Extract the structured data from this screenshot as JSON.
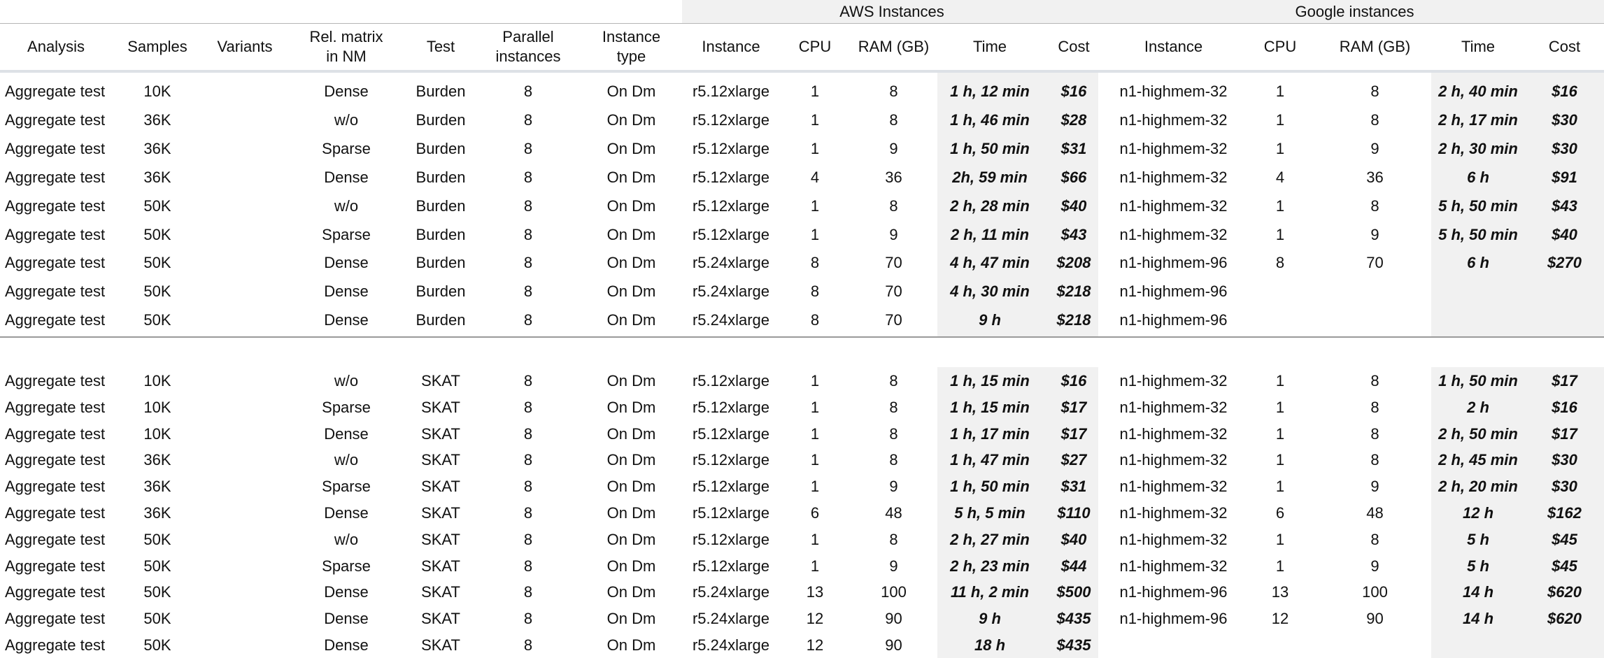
{
  "groups": {
    "aws": "AWS Instances",
    "google": "Google instances"
  },
  "columns": [
    "Analysis",
    "Samples",
    "Variants",
    "Rel. matrix\nin NM",
    "Test",
    "Parallel\ninstances",
    "Instance\ntype",
    "Instance",
    "CPU",
    "RAM (GB)",
    "Time",
    "Cost",
    "Instance",
    "CPU",
    "RAM (GB)",
    "Time",
    "Cost"
  ],
  "burden_rows": [
    [
      "Aggregate test",
      "10K",
      "",
      "Dense",
      "Burden",
      "8",
      "On Dm",
      "r5.12xlarge",
      "1",
      "8",
      "1 h, 12 min",
      "$16",
      "n1-highmem-32",
      "1",
      "8",
      "2 h, 40 min",
      "$16"
    ],
    [
      "Aggregate test",
      "36K",
      "",
      "w/o",
      "Burden",
      "8",
      "On Dm",
      "r5.12xlarge",
      "1",
      "8",
      "1 h, 46 min",
      "$28",
      "n1-highmem-32",
      "1",
      "8",
      "2 h, 17 min",
      "$30"
    ],
    [
      "Aggregate test",
      "36K",
      "",
      "Sparse",
      "Burden",
      "8",
      "On Dm",
      "r5.12xlarge",
      "1",
      "9",
      "1 h, 50 min",
      "$31",
      "n1-highmem-32",
      "1",
      "9",
      "2 h, 30 min",
      "$30"
    ],
    [
      "Aggregate test",
      "36K",
      "",
      "Dense",
      "Burden",
      "8",
      "On Dm",
      "r5.12xlarge",
      "4",
      "36",
      "2h, 59 min",
      "$66",
      "n1-highmem-32",
      "4",
      "36",
      "6 h",
      "$91"
    ],
    [
      "Aggregate test",
      "50K",
      "",
      "w/o",
      "Burden",
      "8",
      "On Dm",
      "r5.12xlarge",
      "1",
      "8",
      "2 h, 28 min",
      "$40",
      "n1-highmem-32",
      "1",
      "8",
      "5 h, 50 min",
      "$43"
    ],
    [
      "Aggregate test",
      "50K",
      "",
      "Sparse",
      "Burden",
      "8",
      "On Dm",
      "r5.12xlarge",
      "1",
      "9",
      "2 h, 11 min",
      "$43",
      "n1-highmem-32",
      "1",
      "9",
      "5 h, 50 min",
      "$40"
    ],
    [
      "Aggregate test",
      "50K",
      "",
      "Dense",
      "Burden",
      "8",
      "On Dm",
      "r5.24xlarge",
      "8",
      "70",
      "4 h, 47 min",
      "$208",
      "n1-highmem-96",
      "8",
      "70",
      "6 h",
      "$270"
    ],
    [
      "Aggregate test",
      "50K",
      "",
      "Dense",
      "Burden",
      "8",
      "On Dm",
      "r5.24xlarge",
      "8",
      "70",
      "4 h, 30 min",
      "$218",
      "n1-highmem-96",
      "",
      "",
      "",
      ""
    ],
    [
      "Aggregate test",
      "50K",
      "",
      "Dense",
      "Burden",
      "8",
      "On Dm",
      "r5.24xlarge",
      "8",
      "70",
      "9 h",
      "$218",
      "n1-highmem-96",
      "",
      "",
      "",
      ""
    ]
  ],
  "skat_rows": [
    [
      "Aggregate test",
      "10K",
      "",
      "w/o",
      "SKAT",
      "8",
      "On Dm",
      "r5.12xlarge",
      "1",
      "8",
      "1 h, 15 min",
      "$16",
      "n1-highmem-32",
      "1",
      "8",
      "1 h, 50 min",
      "$17"
    ],
    [
      "Aggregate test",
      "10K",
      "",
      "Sparse",
      "SKAT",
      "8",
      "On Dm",
      "r5.12xlarge",
      "1",
      "8",
      "1 h, 15 min",
      "$17",
      "n1-highmem-32",
      "1",
      "8",
      "2 h",
      "$16"
    ],
    [
      "Aggregate test",
      "10K",
      "",
      "Dense",
      "SKAT",
      "8",
      "On Dm",
      "r5.12xlarge",
      "1",
      "8",
      "1 h, 17 min",
      "$17",
      "n1-highmem-32",
      "1",
      "8",
      "2 h, 50 min",
      "$17"
    ],
    [
      "Aggregate test",
      "36K",
      "",
      "w/o",
      "SKAT",
      "8",
      "On Dm",
      "r5.12xlarge",
      "1",
      "8",
      "1 h, 47 min",
      "$27",
      "n1-highmem-32",
      "1",
      "8",
      "2 h, 45 min",
      "$30"
    ],
    [
      "Aggregate test",
      "36K",
      "",
      "Sparse",
      "SKAT",
      "8",
      "On Dm",
      "r5.12xlarge",
      "1",
      "9",
      "1 h, 50 min",
      "$31",
      "n1-highmem-32",
      "1",
      "9",
      "2 h, 20 min",
      "$30"
    ],
    [
      "Aggregate test",
      "36K",
      "",
      "Dense",
      "SKAT",
      "8",
      "On Dm",
      "r5.12xlarge",
      "6",
      "48",
      "5 h, 5 min",
      "$110",
      "n1-highmem-32",
      "6",
      "48",
      "12 h",
      "$162"
    ],
    [
      "Aggregate test",
      "50K",
      "",
      "w/o",
      "SKAT",
      "8",
      "On Dm",
      "r5.12xlarge",
      "1",
      "8",
      "2 h, 27 min",
      "$40",
      "n1-highmem-32",
      "1",
      "8",
      "5 h",
      "$45"
    ],
    [
      "Aggregate test",
      "50K",
      "",
      "Sparse",
      "SKAT",
      "8",
      "On Dm",
      "r5.12xlarge",
      "1",
      "9",
      "2 h, 23 min",
      "$44",
      "n1-highmem-32",
      "1",
      "9",
      "5 h",
      "$45"
    ],
    [
      "Aggregate test",
      "50K",
      "",
      "Dense",
      "SKAT",
      "8",
      "On Dm",
      "r5.24xlarge",
      "13",
      "100",
      "11 h, 2 min",
      "$500",
      "n1-highmem-96",
      "13",
      "100",
      "14 h",
      "$620"
    ],
    [
      "Aggregate test",
      "50K",
      "",
      "Dense",
      "SKAT",
      "8",
      "On Dm",
      "r5.24xlarge",
      "12",
      "90",
      "9 h",
      "$435",
      "n1-highmem-96",
      "12",
      "90",
      "14 h",
      "$620"
    ],
    [
      "Aggregate test",
      "50K",
      "",
      "Dense",
      "SKAT",
      "8",
      "On Dm",
      "r5.24xlarge",
      "12",
      "90",
      "18 h",
      "$435",
      "",
      "",
      "",
      "",
      ""
    ]
  ],
  "colors": {
    "shade": "#f1f1f1",
    "rule": "#9a9a9a",
    "header_band": "#dde1e6",
    "text": "#111111"
  }
}
